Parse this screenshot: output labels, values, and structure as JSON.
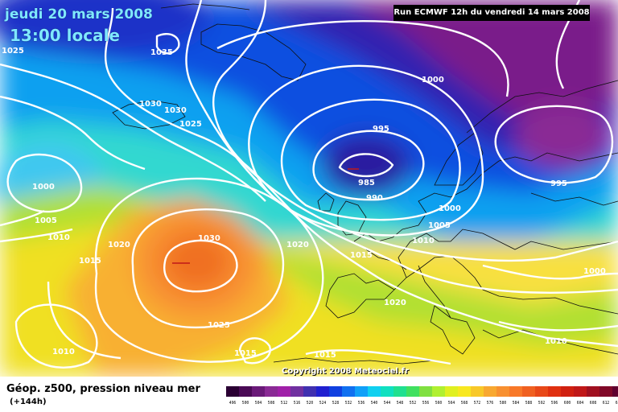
{
  "header": {
    "date": "jeudi 20 mars 2008",
    "local_time": "13:00 locale",
    "run": "Run ECMWF 12h du vendredi 14 mars 2008"
  },
  "footer": {
    "caption": "Géop. z500, pression niveau mer",
    "lead": "(+144h)",
    "copyright": "Copyright 2008 Meteociel.fr"
  },
  "isobar_labels": [
    "1025",
    "1035",
    "1030",
    "1030",
    "1025",
    "1000",
    "995",
    "985",
    "990",
    "1000",
    "1005",
    "1000",
    "995",
    "1005",
    "1010",
    "1015",
    "1020",
    "1030",
    "1020",
    "1015",
    "1025",
    "1020",
    "1015",
    "1010",
    "1015",
    "1010",
    "1000",
    "1010"
  ],
  "legend": {
    "values": [
      "496",
      "500",
      "504",
      "508",
      "512",
      "516",
      "520",
      "524",
      "528",
      "532",
      "536",
      "540",
      "544",
      "548",
      "552",
      "556",
      "560",
      "564",
      "568",
      "572",
      "576",
      "580",
      "584",
      "588",
      "592",
      "596",
      "600",
      "604",
      "608",
      "612",
      "616"
    ],
    "colors": [
      "#2a0033",
      "#4a0a55",
      "#6a1a78",
      "#8a2a95",
      "#a020a8",
      "#7030a0",
      "#4030b0",
      "#2020d0",
      "#1040e0",
      "#1070f0",
      "#10a0f8",
      "#10d0f0",
      "#10e0c0",
      "#20e090",
      "#40e060",
      "#80e040",
      "#b0f030",
      "#e0f020",
      "#f8e820",
      "#f8c828",
      "#f8a830",
      "#f89030",
      "#f87828",
      "#f06020",
      "#e84818",
      "#e03010",
      "#d02010",
      "#c01818",
      "#a01020",
      "#800828",
      "#600030"
    ]
  }
}
